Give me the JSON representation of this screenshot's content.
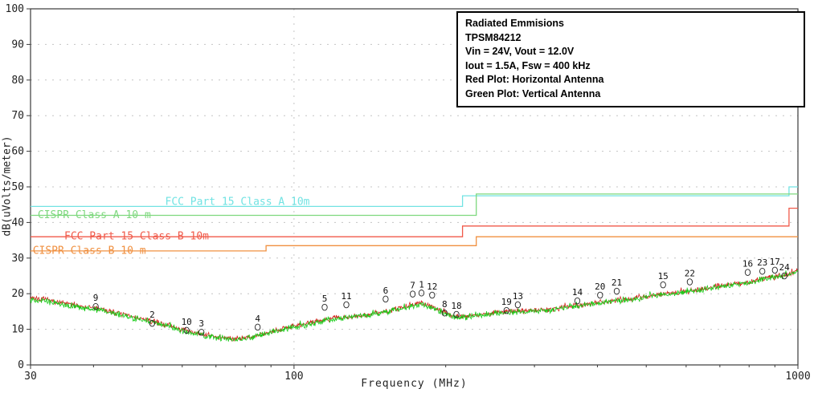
{
  "note": {
    "lines": [
      "Radiated Emmisions",
      "TPSM84212",
      "Vin = 24V, Vout = 12.0V",
      "Iout = 1.5A, Fsw = 400 kHz",
      "Red Plot: Horizontal Antenna",
      "Green Plot: Vertical Antenna"
    ]
  },
  "chart_data": {
    "type": "line",
    "title": "",
    "xlabel": "Frequency (MHz)",
    "ylabel": "dB(uVolts/meter)",
    "x_scale": "log",
    "xlim": [
      30,
      1000
    ],
    "ylim": [
      0,
      100
    ],
    "x_ticks": [
      30,
      100,
      1000
    ],
    "y_ticks": [
      0,
      10,
      20,
      30,
      40,
      50,
      60,
      70,
      80,
      90,
      100
    ],
    "grid": "dashed",
    "legend_position": "none",
    "limit_lines": [
      {
        "name": "FCC Part 15 Class A 10m",
        "color": "#72e3e3",
        "steps": [
          [
            30,
            44.5
          ],
          [
            216,
            47.5
          ],
          [
            960,
            50
          ]
        ],
        "end": 1000,
        "label": {
          "text": "FCC Part 15 Class A 10m",
          "f": 55.5,
          "db": 44.9
        }
      },
      {
        "name": "CISPR Class A 10 m",
        "color": "#7ed87e",
        "steps": [
          [
            30,
            42
          ],
          [
            230,
            48
          ]
        ],
        "end": 1000,
        "label": {
          "text": "CISPR Class A 10 m",
          "f": 31,
          "db": 41.2
        }
      },
      {
        "name": "FCC Part 15 Class B 10m",
        "color": "#f05a4a",
        "steps": [
          [
            30,
            36
          ],
          [
            216,
            39
          ],
          [
            960,
            44
          ]
        ],
        "end": 1000,
        "label": {
          "text": "FCC Part 15  Class B 10m",
          "f": 35,
          "db": 35.2
        }
      },
      {
        "name": "CISPR Class B 10 m",
        "color": "#f09040",
        "steps": [
          [
            30,
            32
          ],
          [
            88,
            33.5
          ],
          [
            230,
            36
          ]
        ],
        "end": 1000,
        "label": {
          "text": "CISPR Class B 10 m",
          "f": 30.3,
          "db": 31.2
        }
      }
    ],
    "series": [
      {
        "name": "Horizontal Antenna",
        "color": "#d42420",
        "noise_db": 0.9,
        "seed": 7,
        "points": [
          [
            30,
            19
          ],
          [
            36,
            17
          ],
          [
            42,
            15.5
          ],
          [
            48,
            13.5
          ],
          [
            55,
            11.5
          ],
          [
            62,
            9.3
          ],
          [
            68,
            8.2
          ],
          [
            75,
            7.4
          ],
          [
            82,
            7.8
          ],
          [
            88,
            9
          ],
          [
            95,
            10.3
          ],
          [
            105,
            11.5
          ],
          [
            115,
            12.8
          ],
          [
            125,
            13.4
          ],
          [
            140,
            14.2
          ],
          [
            155,
            15.2
          ],
          [
            170,
            16.8
          ],
          [
            180,
            17.2
          ],
          [
            190,
            16.2
          ],
          [
            200,
            14.8
          ],
          [
            208,
            13.6
          ],
          [
            220,
            13.8
          ],
          [
            240,
            14.4
          ],
          [
            265,
            15
          ],
          [
            290,
            15.2
          ],
          [
            320,
            15.6
          ],
          [
            360,
            16.6
          ],
          [
            400,
            17.6
          ],
          [
            440,
            18.2
          ],
          [
            480,
            18.8
          ],
          [
            530,
            19.8
          ],
          [
            580,
            20.4
          ],
          [
            640,
            21.2
          ],
          [
            700,
            22.2
          ],
          [
            760,
            22.8
          ],
          [
            820,
            23.6
          ],
          [
            880,
            24.6
          ],
          [
            940,
            25.2
          ],
          [
            1000,
            26.4
          ]
        ]
      },
      {
        "name": "Vertical Antenna",
        "color": "#18cc18",
        "noise_db": 1.0,
        "seed": 13,
        "points": [
          [
            30,
            18.6
          ],
          [
            36,
            16.6
          ],
          [
            42,
            15.2
          ],
          [
            48,
            13.2
          ],
          [
            55,
            11.2
          ],
          [
            62,
            9
          ],
          [
            68,
            8
          ],
          [
            75,
            7.2
          ],
          [
            82,
            7.6
          ],
          [
            88,
            8.8
          ],
          [
            95,
            10
          ],
          [
            105,
            11.2
          ],
          [
            115,
            12.5
          ],
          [
            125,
            13.2
          ],
          [
            140,
            14
          ],
          [
            155,
            15
          ],
          [
            170,
            16.4
          ],
          [
            180,
            16.8
          ],
          [
            190,
            15.8
          ],
          [
            200,
            14.4
          ],
          [
            208,
            13.2
          ],
          [
            220,
            13.5
          ],
          [
            240,
            14.2
          ],
          [
            265,
            14.8
          ],
          [
            290,
            15
          ],
          [
            320,
            15.4
          ],
          [
            360,
            16.4
          ],
          [
            400,
            17.4
          ],
          [
            440,
            18
          ],
          [
            480,
            18.6
          ],
          [
            530,
            19.6
          ],
          [
            580,
            20.2
          ],
          [
            640,
            21
          ],
          [
            700,
            22
          ],
          [
            760,
            22.6
          ],
          [
            820,
            23.4
          ],
          [
            880,
            24.4
          ],
          [
            940,
            25
          ],
          [
            1000,
            26.2
          ]
        ]
      }
    ],
    "peak_markers": [
      [
        1,
        179,
        20.2
      ],
      [
        2,
        52.3,
        11.7
      ],
      [
        3,
        65.5,
        9.2
      ],
      [
        4,
        84.7,
        10.6
      ],
      [
        5,
        115,
        16.2
      ],
      [
        6,
        152,
        18.5
      ],
      [
        7,
        172,
        19.9
      ],
      [
        8,
        199,
        14.6
      ],
      [
        9,
        40.4,
        16.4
      ],
      [
        10,
        61.2,
        9.7
      ],
      [
        11,
        127,
        16.9
      ],
      [
        12,
        188,
        19.6
      ],
      [
        13,
        278,
        16.9
      ],
      [
        14,
        365,
        18.0
      ],
      [
        15,
        540,
        22.5
      ],
      [
        16,
        795,
        26.0
      ],
      [
        17,
        900,
        26.6
      ],
      [
        18,
        210,
        14.2
      ],
      [
        19,
        264,
        15.3
      ],
      [
        20,
        405,
        19.6
      ],
      [
        21,
        437,
        20.7
      ],
      [
        22,
        610,
        23.3
      ],
      [
        23,
        850,
        26.3
      ],
      [
        24,
        940,
        25.0
      ]
    ]
  }
}
